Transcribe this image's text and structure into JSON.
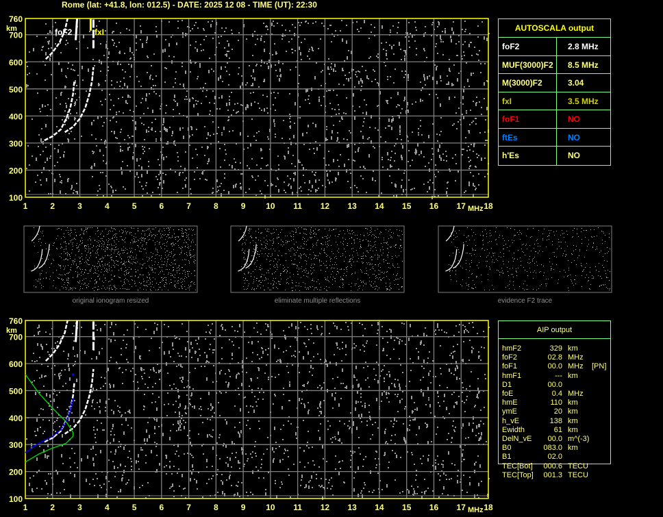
{
  "header": {
    "title": "Rome (lat: +41.8, lon: 012.5) - DATE: 2025 12 08 - TIME (UT): 22:30"
  },
  "colors": {
    "axis": "#ffff00",
    "label": "#ffff80",
    "grid": "#808080",
    "table_border": "#80ff80",
    "o_trace": "#ffffff",
    "profile": "#00e000",
    "fitted_trace": "#0000ff",
    "fxl": "#ffff00"
  },
  "chart_data": [
    {
      "type": "scatter",
      "name_label": "foF2",
      "fxl_label": "fxI",
      "xlabel": "MHz",
      "ylabel": "km",
      "xlim": [
        1,
        18
      ],
      "ylim": [
        100,
        760
      ],
      "grid": true,
      "x_ticks": [
        "1",
        "2",
        "3",
        "4",
        "5",
        "6",
        "7",
        "8",
        "9",
        "10",
        "11",
        "12",
        "13",
        "14",
        "15",
        "16",
        "17",
        "18"
      ],
      "y_ticks": [
        "100",
        "200",
        "300",
        "400",
        "500",
        "600",
        "700",
        "760"
      ],
      "traces": {
        "o_mode": [
          [
            1.7,
            310
          ],
          [
            2.0,
            325
          ],
          [
            2.3,
            350
          ],
          [
            2.5,
            390
          ],
          [
            2.65,
            430
          ],
          [
            2.75,
            480
          ],
          [
            2.8,
            530
          ]
        ],
        "o_second_hop": [
          [
            1.75,
            610
          ],
          [
            2.0,
            635
          ],
          [
            2.25,
            670
          ],
          [
            2.45,
            715
          ],
          [
            2.55,
            760
          ]
        ],
        "x_mode": [
          [
            2.45,
            340
          ],
          [
            2.75,
            360
          ],
          [
            3.0,
            390
          ],
          [
            3.2,
            430
          ],
          [
            3.35,
            480
          ],
          [
            3.45,
            530
          ],
          [
            3.5,
            580
          ]
        ],
        "x_second_hop": [
          [
            2.85,
            680
          ],
          [
            2.9,
            760
          ]
        ],
        "x_upper": [
          [
            3.5,
            650
          ],
          [
            3.5,
            760
          ]
        ]
      },
      "fxl_mhz": 3.5
    },
    {
      "type": "line",
      "xlabel": "MHz",
      "ylabel": "km",
      "xlim": [
        1,
        18
      ],
      "ylim": [
        100,
        760
      ],
      "grid": true,
      "x_ticks": [
        "1",
        "2",
        "3",
        "4",
        "5",
        "6",
        "7",
        "8",
        "9",
        "10",
        "11",
        "12",
        "13",
        "14",
        "15",
        "16",
        "17",
        "18"
      ],
      "y_ticks": [
        "100",
        "200",
        "300",
        "400",
        "500",
        "600",
        "700",
        "760"
      ],
      "electron_density_profile": [
        [
          1,
          560
        ],
        [
          1.5,
          490
        ],
        [
          2,
          435
        ],
        [
          2.5,
          385
        ],
        [
          2.75,
          345
        ],
        [
          2.75,
          330
        ],
        [
          2.5,
          305
        ],
        [
          2,
          287
        ],
        [
          1.5,
          265
        ],
        [
          1,
          235
        ]
      ],
      "fitted_trace": [
        [
          1,
          270
        ],
        [
          1.5,
          305
        ],
        [
          2,
          330
        ],
        [
          2.3,
          355
        ],
        [
          2.5,
          385
        ],
        [
          2.65,
          430
        ],
        [
          2.75,
          470
        ]
      ],
      "fitted_point": [
        2.75,
        560
      ]
    }
  ],
  "thumbnails": [
    {
      "caption": "original ionogram resized"
    },
    {
      "caption": "eliminate multiple reflections"
    },
    {
      "caption": "evidence F2 trace"
    }
  ],
  "autoscala": {
    "title": "AUTOSCALA output",
    "rows": [
      {
        "key": "foF2",
        "value": "2.8 MHz",
        "color": "#ffffff"
      },
      {
        "key": "MUF(3000)F2",
        "value": "8.5 MHz",
        "color": "#ffff80"
      },
      {
        "key": "M(3000)F2",
        "value": "3.04",
        "color": "#ffff80"
      },
      {
        "key": "fxI",
        "value": "3.5 MHz",
        "color": "#d0d000"
      },
      {
        "key": "foF1",
        "value": "NO",
        "color": "#ff0000"
      },
      {
        "key": "ftEs",
        "value": "NO",
        "color": "#0080ff"
      },
      {
        "key": "h'Es",
        "value": "NO",
        "color": "#ffff80"
      }
    ]
  },
  "aip": {
    "title": "AIP output",
    "rows": [
      {
        "k": "hmF2",
        "v": "329",
        "u": "km",
        "x": ""
      },
      {
        "k": "foF2",
        "v": "02.8",
        "u": "MHz",
        "x": ""
      },
      {
        "k": "foF1",
        "v": "00.0",
        "u": "MHz",
        "x": "[PN]"
      },
      {
        "k": "hmF1",
        "v": "---",
        "u": "km",
        "x": ""
      },
      {
        "k": "D1",
        "v": "00.0",
        "u": "",
        "x": ""
      },
      {
        "k": "foE",
        "v": "0.4",
        "u": "MHz",
        "x": ""
      },
      {
        "k": "hmE",
        "v": "110",
        "u": "km",
        "x": ""
      },
      {
        "k": "ymE",
        "v": "20",
        "u": "km",
        "x": ""
      },
      {
        "k": "h_vE",
        "v": "138",
        "u": "km",
        "x": ""
      },
      {
        "k": "Ewidth",
        "v": "61",
        "u": "km",
        "x": ""
      },
      {
        "k": "DelN_vE",
        "v": "00.0",
        "u": "m^(-3)",
        "x": ""
      },
      {
        "k": "B0",
        "v": "083.0",
        "u": "km",
        "x": ""
      },
      {
        "k": "B1",
        "v": "02.0",
        "u": "",
        "x": ""
      },
      {
        "k": "TEC[Bot]",
        "v": "000.6",
        "u": "TECU",
        "x": ""
      },
      {
        "k": "TEC[Top]",
        "v": "001.3",
        "u": "TECU",
        "x": ""
      }
    ]
  }
}
